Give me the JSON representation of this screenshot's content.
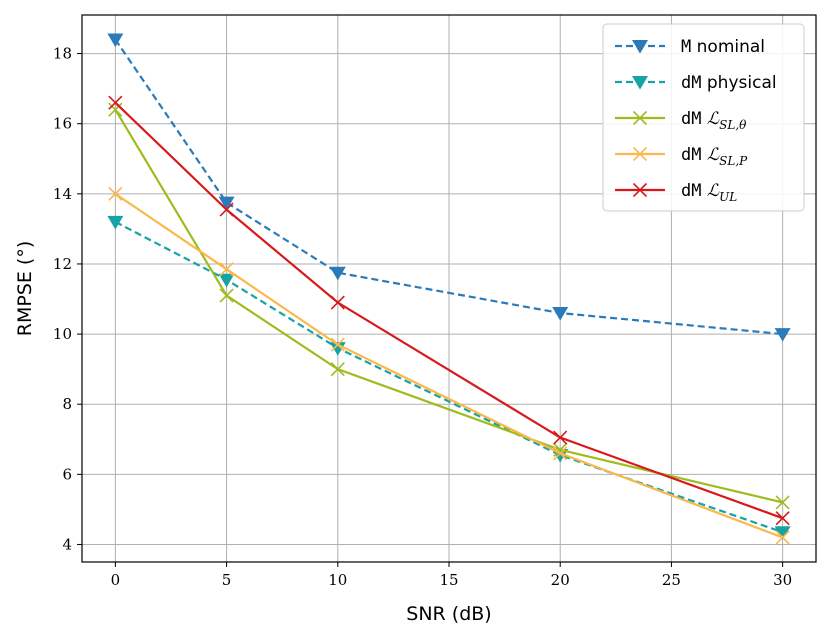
{
  "chart_data": {
    "type": "line",
    "title": "",
    "xlabel": "SNR (dB)",
    "ylabel": "RMPSE (°)",
    "xlim": [
      -1.5,
      31.5
    ],
    "ylim": [
      3.5,
      19.1
    ],
    "xticks": [
      0,
      5,
      10,
      15,
      20,
      25,
      30
    ],
    "yticks": [
      4,
      6,
      8,
      10,
      12,
      14,
      16,
      18
    ],
    "grid": true,
    "legend_position": "top-right",
    "x": [
      0,
      5,
      10,
      20,
      30
    ],
    "series": [
      {
        "name": "M nominal",
        "name_mono": "M",
        "name_rest": " nominal",
        "name_sub": "",
        "color": "#2b7bba",
        "linestyle": "dashed",
        "marker": "triangle-down",
        "values": [
          18.4,
          13.75,
          11.75,
          10.6,
          10.0
        ]
      },
      {
        "name": "dM physical",
        "name_mono": "dM",
        "name_rest": " physical",
        "name_sub": "",
        "color": "#17a3a3",
        "linestyle": "dashed",
        "marker": "triangle-down",
        "values": [
          13.2,
          11.55,
          9.6,
          6.55,
          4.35
        ]
      },
      {
        "name": "dM L_SL,θ",
        "name_mono": "dM",
        "name_rest": " ℒ",
        "name_sub": "SL,θ",
        "color": "#9dbc1e",
        "linestyle": "solid",
        "marker": "x",
        "values": [
          16.4,
          11.1,
          9.0,
          6.7,
          5.2
        ]
      },
      {
        "name": "dM L_SL,P",
        "name_mono": "dM",
        "name_rest": " ℒ",
        "name_sub": "SL,P",
        "color": "#fbb84a",
        "linestyle": "solid",
        "marker": "x",
        "values": [
          14.0,
          11.85,
          9.7,
          6.6,
          4.2
        ]
      },
      {
        "name": "dM L_UL",
        "name_mono": "dM",
        "name_rest": " ℒ",
        "name_sub": "UL",
        "color": "#d7191c",
        "linestyle": "solid",
        "marker": "x",
        "values": [
          16.6,
          13.55,
          10.9,
          7.05,
          4.75
        ]
      }
    ]
  }
}
